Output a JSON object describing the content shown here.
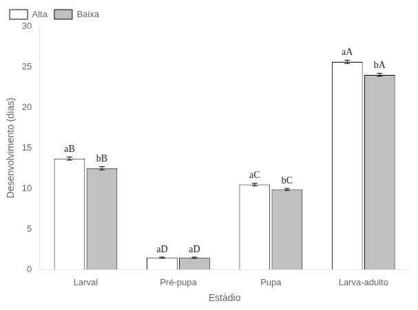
{
  "chart_data": {
    "type": "bar",
    "categories": [
      "Larval",
      "Pré-pupa",
      "Pupa",
      "Larva-adulto"
    ],
    "series": [
      {
        "name": "Alta",
        "color": "#ffffff",
        "values": [
          13.7,
          1.5,
          10.5,
          25.6
        ],
        "errors": [
          0.2,
          0.07,
          0.15,
          0.2
        ],
        "annotations": [
          "aB",
          "aD",
          "aC",
          "aA"
        ]
      },
      {
        "name": "Baixa",
        "color": "#c0c0c0",
        "values": [
          12.5,
          1.5,
          9.9,
          24.0
        ],
        "errors": [
          0.2,
          0.07,
          0.12,
          0.18
        ],
        "annotations": [
          "bB",
          "aD",
          "bC",
          "bA"
        ]
      }
    ],
    "xlabel": "Estádio",
    "ylabel": "Desenvolvimento (dias)",
    "ylim": [
      0,
      30
    ],
    "yticks": [
      0,
      5,
      10,
      15,
      20,
      25,
      30
    ],
    "legend": "upper left",
    "grid": false
  }
}
